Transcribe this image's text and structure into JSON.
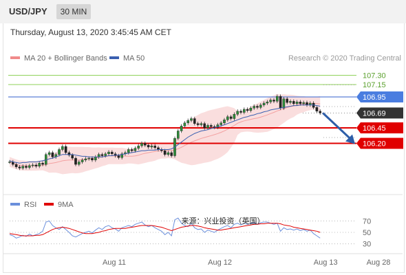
{
  "header": {
    "symbol": "USD/JPY",
    "timeframe": "30 MIN"
  },
  "datetime": "Thursday, August 13, 2020 3:45:45 AM CET",
  "credit": "Research © 2020 Trading Central",
  "watermark": "来源：兴业投资（英国）",
  "colors": {
    "price_line": "#5b7fd6",
    "red_level": "#e00000",
    "green_level": "#8fd15a",
    "ma50": "#3a5fb0",
    "bands": "#f6c2c2",
    "rsi": "#6a8fdc",
    "rsi_ma": "#e00000",
    "arrow": "#2d5ea8"
  },
  "chart_data": [
    {
      "type": "candlestick",
      "legend": [
        {
          "name": "MA 20 + Bollinger Bands",
          "color": "#f08a8a"
        },
        {
          "name": "MA 50",
          "color": "#3a5fb0"
        }
      ],
      "ylim": [
        105.45,
        107.45
      ],
      "levels": [
        {
          "value": 107.3,
          "label": "107.30",
          "style": "green"
        },
        {
          "value": 107.15,
          "label": "107.15",
          "style": "green"
        },
        {
          "value": 106.95,
          "label": "106.95",
          "style": "blue"
        },
        {
          "value": 106.69,
          "label": "106.69",
          "style": "current"
        },
        {
          "value": 106.45,
          "label": "106.45",
          "style": "red"
        },
        {
          "value": 106.2,
          "label": "106.20",
          "style": "red"
        }
      ],
      "x_ticks": [
        {
          "label": "Aug 11",
          "index": 30
        },
        {
          "label": "Aug 12",
          "index": 62
        },
        {
          "label": "Aug 13",
          "index": 94
        },
        {
          "label": "Aug 28",
          "index": 110
        }
      ],
      "close": [
        105.9,
        105.86,
        105.82,
        105.8,
        105.83,
        105.81,
        105.84,
        105.85,
        105.83,
        105.88,
        105.86,
        106.02,
        106.05,
        105.98,
        106.02,
        106.1,
        106.15,
        106.05,
        106.01,
        105.96,
        105.86,
        105.9,
        105.93,
        105.95,
        105.96,
        105.93,
        105.98,
        106.02,
        106.0,
        106.03,
        106.06,
        106.03,
        106.0,
        105.97,
        106.03,
        106.05,
        106.1,
        106.08,
        106.12,
        106.16,
        106.2,
        106.17,
        106.14,
        106.16,
        106.13,
        106.1,
        106.08,
        106.02,
        106.05,
        106.0,
        106.28,
        106.4,
        106.48,
        106.53,
        106.57,
        106.6,
        106.52,
        106.5,
        106.52,
        106.45,
        106.49,
        106.47,
        106.46,
        106.5,
        106.53,
        106.58,
        106.63,
        106.6,
        106.67,
        106.72,
        106.7,
        106.75,
        106.73,
        106.77,
        106.8,
        106.78,
        106.82,
        106.85,
        106.87,
        106.9,
        106.88,
        106.96,
        106.77,
        106.92,
        106.86,
        106.88,
        106.84,
        106.87,
        106.84,
        106.86,
        106.82,
        106.85,
        106.78,
        106.72,
        106.69
      ],
      "ma50": [
        105.92,
        105.9,
        105.89,
        105.88,
        105.89,
        105.89,
        105.9,
        105.9,
        105.9,
        105.91,
        105.92,
        105.93,
        105.95,
        105.96,
        105.98,
        106.0,
        106.02,
        106.02,
        106.02,
        106.02,
        106.01,
        106.0,
        105.99,
        105.99,
        105.98,
        105.98,
        105.98,
        105.98,
        105.98,
        105.99,
        106.0,
        106.0,
        106.01,
        106.01,
        106.02,
        106.03,
        106.04,
        106.05,
        106.06,
        106.07,
        106.08,
        106.08,
        106.09,
        106.09,
        106.09,
        106.1,
        106.1,
        106.1,
        106.1,
        106.11,
        106.14,
        106.18,
        106.22,
        106.26,
        106.3,
        106.33,
        106.36,
        106.38,
        106.4,
        106.41,
        106.42,
        106.44,
        106.45,
        106.47,
        106.48,
        106.5,
        106.52,
        106.54,
        106.56,
        106.58,
        106.6,
        106.62,
        106.63,
        106.65,
        106.66,
        106.68,
        106.69,
        106.71,
        106.72,
        106.74,
        106.75,
        106.76,
        106.77,
        106.78,
        106.79,
        106.8,
        106.81,
        106.81,
        106.82,
        106.82,
        106.82,
        106.82,
        106.82,
        106.81,
        106.8
      ]
    },
    {
      "type": "line",
      "series": [
        {
          "name": "RSI"
        },
        {
          "name": "9MA"
        }
      ],
      "y_ticks": [
        70,
        50,
        30
      ],
      "ylim": [
        20,
        80
      ],
      "rsi": [
        46,
        44,
        40,
        42,
        45,
        43,
        47,
        44,
        46,
        48,
        52,
        68,
        70,
        62,
        58,
        55,
        60,
        55,
        50,
        44,
        42,
        45,
        48,
        50,
        52,
        49,
        54,
        58,
        55,
        60,
        62,
        58,
        56,
        52,
        58,
        60,
        62,
        60,
        64,
        66,
        68,
        63,
        60,
        62,
        58,
        55,
        52,
        46,
        50,
        44,
        72,
        75,
        66,
        62,
        60,
        66,
        58,
        55,
        56,
        50,
        54,
        52,
        50,
        54,
        57,
        60,
        62,
        58,
        64,
        66,
        63,
        66,
        64,
        66,
        67,
        64,
        67,
        68,
        68,
        66,
        64,
        66,
        52,
        58,
        55,
        56,
        54,
        56,
        53,
        55,
        52,
        54,
        48,
        44,
        40
      ],
      "rsi_ma": [
        48,
        47,
        46,
        45,
        44,
        44,
        44,
        44,
        45,
        45,
        46,
        49,
        52,
        55,
        57,
        58,
        59,
        58,
        57,
        55,
        53,
        51,
        49,
        48,
        48,
        48,
        49,
        50,
        52,
        53,
        55,
        56,
        57,
        57,
        57,
        57,
        58,
        59,
        60,
        61,
        62,
        62,
        62,
        62,
        61,
        60,
        59,
        57,
        55,
        53,
        55,
        57,
        59,
        60,
        61,
        62,
        62,
        61,
        60,
        58,
        57,
        56,
        55,
        54,
        54,
        55,
        56,
        57,
        58,
        59,
        60,
        61,
        62,
        63,
        64,
        64,
        65,
        65,
        66,
        66,
        66,
        66,
        65,
        63,
        62,
        61,
        59,
        58,
        57,
        56,
        55,
        54,
        53,
        52,
        50
      ]
    }
  ]
}
